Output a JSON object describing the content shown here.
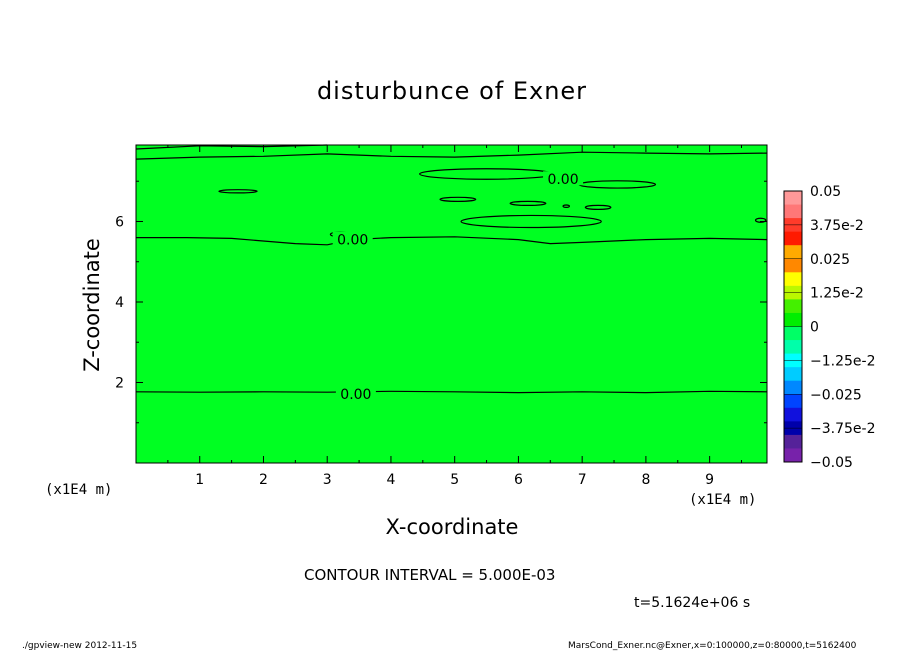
{
  "chart_data": {
    "type": "contour",
    "title": "disturbunce of Exner",
    "xlabel": "X-coordinate",
    "ylabel": "Z-coordinate",
    "xunit": "(x1E4 m)",
    "xlim": [
      0,
      9.9
    ],
    "ylim": [
      0,
      7.9
    ],
    "xticks": [
      1,
      2,
      3,
      4,
      5,
      6,
      7,
      8,
      9
    ],
    "yticks": [
      2,
      4,
      6
    ],
    "fill_color": "#00ff22",
    "contour_interval_text": "CONTOUR INTERVAL = 5.000E-03",
    "time_text": "t=5.1624e+06 s",
    "contour_levels": [
      {
        "value": "0.00",
        "label_at": [
          3.4,
          5.55
        ]
      },
      {
        "value": "0.00",
        "label_at": [
          3.45,
          1.72
        ]
      },
      {
        "value": "0.00",
        "label_at": [
          6.7,
          7.05
        ]
      }
    ],
    "colorbar": {
      "labels": [
        "0.05",
        "3.75e-2",
        "0.025",
        "1.25e-2",
        "0",
        "−1.25e-2",
        "−0.025",
        "−3.75e-2",
        "−0.05"
      ],
      "colors": [
        "#ff9999",
        "#ff7777",
        "#ff3b2a",
        "#ff1a00",
        "#ffaa00",
        "#ff8800",
        "#ffff00",
        "#bbf800",
        "#44f000",
        "#00ee00",
        "#00ff66",
        "#00ffaa",
        "#00ffff",
        "#00ccff",
        "#0088ff",
        "#0044ff",
        "#1111dd",
        "#0000aa",
        "#552299",
        "#7722aa"
      ]
    }
  },
  "footer": {
    "left": "./gpview-new  2012-11-15",
    "right": "MarsCond_Exner.nc@Exner,x=0:100000,z=0:80000,t=5162400"
  }
}
